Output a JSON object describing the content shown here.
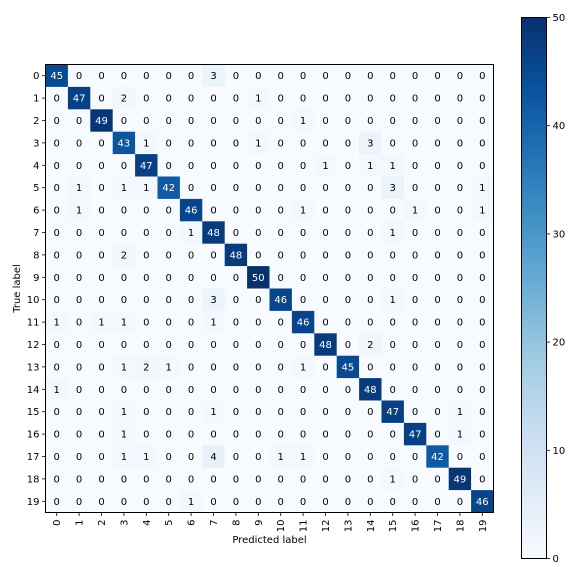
{
  "chart_data": {
    "type": "heatmap",
    "title": "",
    "xlabel": "Predicted label",
    "ylabel": "True label",
    "x_categories": [
      "0",
      "1",
      "2",
      "3",
      "4",
      "5",
      "6",
      "7",
      "8",
      "9",
      "10",
      "11",
      "12",
      "13",
      "14",
      "15",
      "16",
      "17",
      "18",
      "19"
    ],
    "y_categories": [
      "0",
      "1",
      "2",
      "3",
      "4",
      "5",
      "6",
      "7",
      "8",
      "9",
      "10",
      "11",
      "12",
      "13",
      "14",
      "15",
      "16",
      "17",
      "18",
      "19"
    ],
    "matrix": [
      [
        45,
        0,
        0,
        0,
        0,
        0,
        0,
        3,
        0,
        0,
        0,
        0,
        0,
        0,
        0,
        0,
        0,
        0,
        0,
        0
      ],
      [
        0,
        47,
        0,
        2,
        0,
        0,
        0,
        0,
        0,
        1,
        0,
        0,
        0,
        0,
        0,
        0,
        0,
        0,
        0,
        0
      ],
      [
        0,
        0,
        49,
        0,
        0,
        0,
        0,
        0,
        0,
        0,
        0,
        1,
        0,
        0,
        0,
        0,
        0,
        0,
        0,
        0
      ],
      [
        0,
        0,
        0,
        43,
        1,
        0,
        0,
        0,
        0,
        1,
        0,
        0,
        0,
        0,
        3,
        0,
        0,
        0,
        0,
        0
      ],
      [
        0,
        0,
        0,
        0,
        47,
        0,
        0,
        0,
        0,
        0,
        0,
        0,
        1,
        0,
        1,
        1,
        0,
        0,
        0,
        0
      ],
      [
        0,
        1,
        0,
        1,
        1,
        42,
        0,
        0,
        0,
        0,
        0,
        0,
        0,
        0,
        0,
        3,
        0,
        0,
        0,
        1
      ],
      [
        0,
        1,
        0,
        0,
        0,
        0,
        46,
        0,
        0,
        0,
        0,
        1,
        0,
        0,
        0,
        0,
        1,
        0,
        0,
        1
      ],
      [
        0,
        0,
        0,
        0,
        0,
        0,
        1,
        48,
        0,
        0,
        0,
        0,
        0,
        0,
        0,
        1,
        0,
        0,
        0,
        0
      ],
      [
        0,
        0,
        0,
        2,
        0,
        0,
        0,
        0,
        48,
        0,
        0,
        0,
        0,
        0,
        0,
        0,
        0,
        0,
        0,
        0
      ],
      [
        0,
        0,
        0,
        0,
        0,
        0,
        0,
        0,
        0,
        50,
        0,
        0,
        0,
        0,
        0,
        0,
        0,
        0,
        0,
        0
      ],
      [
        0,
        0,
        0,
        0,
        0,
        0,
        0,
        3,
        0,
        0,
        46,
        0,
        0,
        0,
        0,
        1,
        0,
        0,
        0,
        0
      ],
      [
        1,
        0,
        1,
        1,
        0,
        0,
        0,
        1,
        0,
        0,
        0,
        46,
        0,
        0,
        0,
        0,
        0,
        0,
        0,
        0
      ],
      [
        0,
        0,
        0,
        0,
        0,
        0,
        0,
        0,
        0,
        0,
        0,
        0,
        48,
        0,
        2,
        0,
        0,
        0,
        0,
        0
      ],
      [
        0,
        0,
        0,
        1,
        2,
        1,
        0,
        0,
        0,
        0,
        0,
        1,
        0,
        45,
        0,
        0,
        0,
        0,
        0,
        0
      ],
      [
        1,
        0,
        0,
        0,
        0,
        0,
        0,
        0,
        0,
        0,
        0,
        0,
        0,
        0,
        48,
        0,
        0,
        0,
        0,
        0
      ],
      [
        0,
        0,
        0,
        1,
        0,
        0,
        0,
        1,
        0,
        0,
        0,
        0,
        0,
        0,
        0,
        47,
        0,
        0,
        1,
        0
      ],
      [
        0,
        0,
        0,
        1,
        0,
        0,
        0,
        0,
        0,
        0,
        0,
        0,
        0,
        0,
        0,
        0,
        47,
        0,
        1,
        0
      ],
      [
        0,
        0,
        0,
        1,
        1,
        0,
        0,
        4,
        0,
        0,
        1,
        1,
        0,
        0,
        0,
        0,
        0,
        42,
        0,
        0
      ],
      [
        0,
        0,
        0,
        0,
        0,
        0,
        0,
        0,
        0,
        0,
        0,
        0,
        0,
        0,
        0,
        1,
        0,
        0,
        49,
        0
      ],
      [
        0,
        0,
        0,
        0,
        0,
        0,
        1,
        0,
        0,
        0,
        0,
        0,
        0,
        0,
        0,
        0,
        0,
        0,
        0,
        46
      ]
    ],
    "colorbar": {
      "min": 0,
      "max": 50,
      "ticks": [
        0,
        10,
        20,
        30,
        40,
        50
      ]
    },
    "colormap": "Blues",
    "colors": {
      "low": "#f7fbff",
      "high": "#08306b",
      "text_dark": "#000000",
      "text_light": "#ffffff"
    },
    "grid": false,
    "legend": "colorbar-right"
  }
}
